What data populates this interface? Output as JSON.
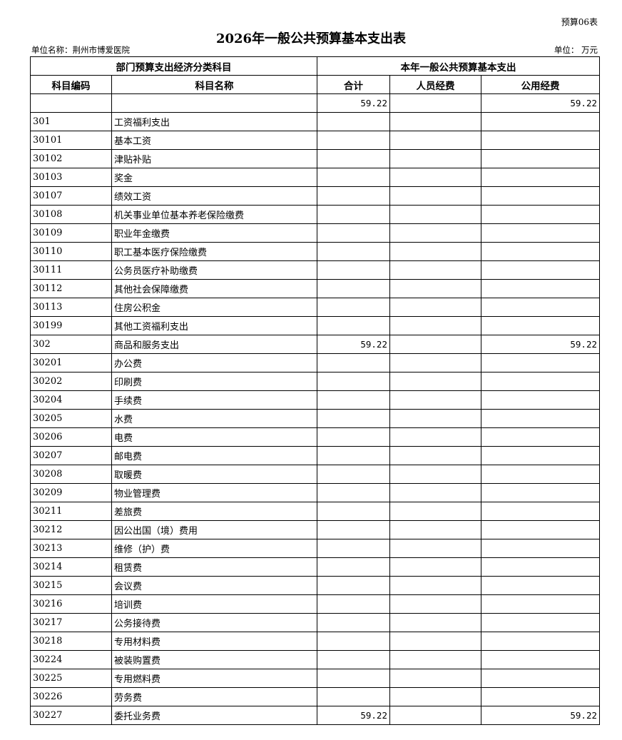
{
  "form_no": "预算06表",
  "title": "2026年一般公共预算基本支出表",
  "unit_name": "单位名称：荆州市博爱医院",
  "unit": "单位：  万元",
  "header": {
    "group_left": "部门预算支出经济分类科目",
    "group_right": "本年一般公共预算基本支出",
    "code": "科目编码",
    "name": "科目名称",
    "total": "合计",
    "personnel": "人员经费",
    "public": "公用经费"
  },
  "rows": [
    {
      "code": "",
      "name": "",
      "total": "59.22",
      "personnel": "",
      "public": "59.22"
    },
    {
      "code": "301",
      "name": "工资福利支出",
      "total": "",
      "personnel": "",
      "public": ""
    },
    {
      "code": "30101",
      "name": "基本工资",
      "total": "",
      "personnel": "",
      "public": ""
    },
    {
      "code": "30102",
      "name": "津贴补贴",
      "total": "",
      "personnel": "",
      "public": ""
    },
    {
      "code": "30103",
      "name": "奖金",
      "total": "",
      "personnel": "",
      "public": ""
    },
    {
      "code": "30107",
      "name": "绩效工资",
      "total": "",
      "personnel": "",
      "public": ""
    },
    {
      "code": "30108",
      "name": "机关事业单位基本养老保险缴费",
      "total": "",
      "personnel": "",
      "public": ""
    },
    {
      "code": "30109",
      "name": "职业年金缴费",
      "total": "",
      "personnel": "",
      "public": ""
    },
    {
      "code": "30110",
      "name": "职工基本医疗保险缴费",
      "total": "",
      "personnel": "",
      "public": ""
    },
    {
      "code": "30111",
      "name": "公务员医疗补助缴费",
      "total": "",
      "personnel": "",
      "public": ""
    },
    {
      "code": "30112",
      "name": "其他社会保障缴费",
      "total": "",
      "personnel": "",
      "public": ""
    },
    {
      "code": "30113",
      "name": "住房公积金",
      "total": "",
      "personnel": "",
      "public": ""
    },
    {
      "code": "30199",
      "name": "其他工资福利支出",
      "total": "",
      "personnel": "",
      "public": ""
    },
    {
      "code": "302",
      "name": "商品和服务支出",
      "total": "59.22",
      "personnel": "",
      "public": "59.22"
    },
    {
      "code": "30201",
      "name": "办公费",
      "total": "",
      "personnel": "",
      "public": ""
    },
    {
      "code": "30202",
      "name": "印刷费",
      "total": "",
      "personnel": "",
      "public": ""
    },
    {
      "code": "30204",
      "name": "手续费",
      "total": "",
      "personnel": "",
      "public": ""
    },
    {
      "code": "30205",
      "name": "水费",
      "total": "",
      "personnel": "",
      "public": ""
    },
    {
      "code": "30206",
      "name": "电费",
      "total": "",
      "personnel": "",
      "public": ""
    },
    {
      "code": "30207",
      "name": "邮电费",
      "total": "",
      "personnel": "",
      "public": ""
    },
    {
      "code": "30208",
      "name": "取暖费",
      "total": "",
      "personnel": "",
      "public": ""
    },
    {
      "code": "30209",
      "name": "物业管理费",
      "total": "",
      "personnel": "",
      "public": ""
    },
    {
      "code": "30211",
      "name": "差旅费",
      "total": "",
      "personnel": "",
      "public": ""
    },
    {
      "code": "30212",
      "name": "因公出国（境）费用",
      "total": "",
      "personnel": "",
      "public": ""
    },
    {
      "code": "30213",
      "name": "维修（护）费",
      "total": "",
      "personnel": "",
      "public": ""
    },
    {
      "code": "30214",
      "name": "租赁费",
      "total": "",
      "personnel": "",
      "public": ""
    },
    {
      "code": "30215",
      "name": "会议费",
      "total": "",
      "personnel": "",
      "public": ""
    },
    {
      "code": "30216",
      "name": "培训费",
      "total": "",
      "personnel": "",
      "public": ""
    },
    {
      "code": "30217",
      "name": "公务接待费",
      "total": "",
      "personnel": "",
      "public": ""
    },
    {
      "code": "30218",
      "name": "专用材料费",
      "total": "",
      "personnel": "",
      "public": ""
    },
    {
      "code": "30224",
      "name": "被装购置费",
      "total": "",
      "personnel": "",
      "public": ""
    },
    {
      "code": "30225",
      "name": "专用燃料费",
      "total": "",
      "personnel": "",
      "public": ""
    },
    {
      "code": "30226",
      "name": "劳务费",
      "total": "",
      "personnel": "",
      "public": ""
    },
    {
      "code": "30227",
      "name": "委托业务费",
      "total": "59.22",
      "personnel": "",
      "public": "59.22"
    }
  ]
}
